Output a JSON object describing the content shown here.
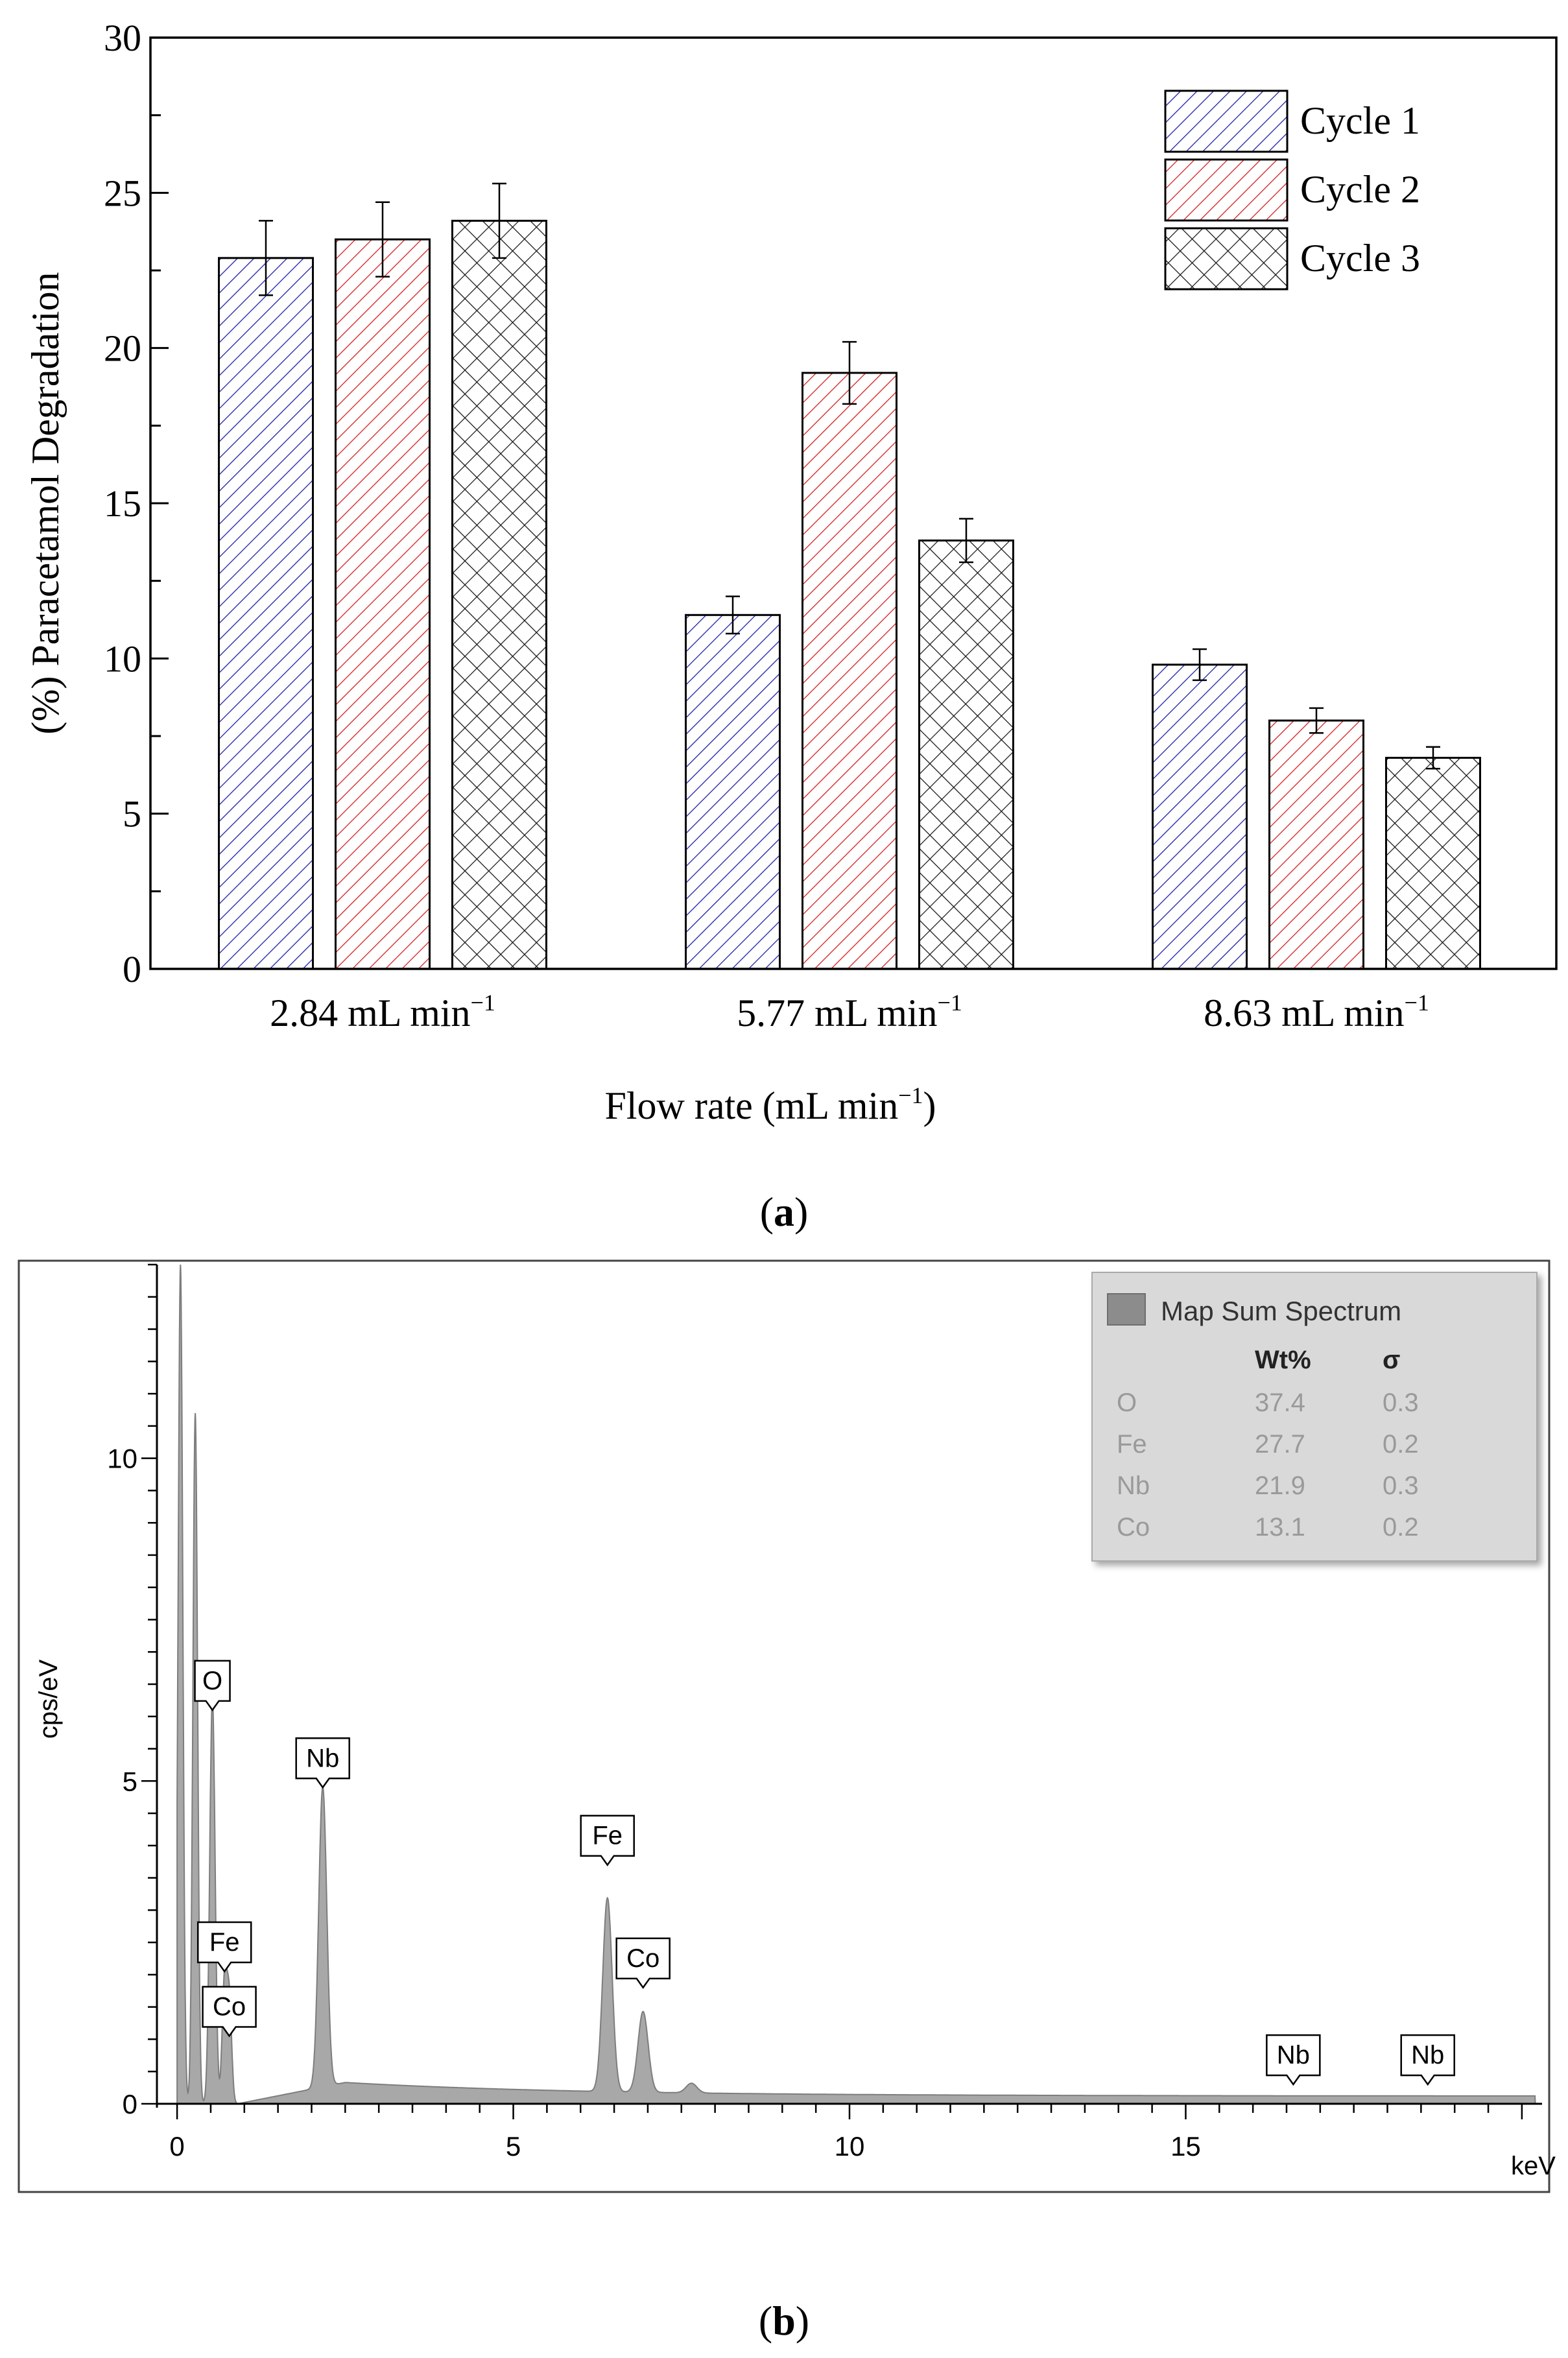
{
  "panels": {
    "a": {
      "caption": "a",
      "chart_data": {
        "type": "bar",
        "title": "",
        "xlabel": "Flow rate (mL min",
        "xlabel_sup": "−1",
        "xlabel_close": ")",
        "ylabel": "(%) Paracetamol Degradation",
        "ylim": [
          0,
          30
        ],
        "yticks": [
          0,
          5,
          10,
          15,
          20,
          25,
          30
        ],
        "categories": [
          {
            "label": "2.84  mL min",
            "sup": "−1"
          },
          {
            "label": "5.77 mL min",
            "sup": "−1"
          },
          {
            "label": "8.63 mL min",
            "sup": "−1"
          }
        ],
        "series": [
          {
            "name": "Cycle 1",
            "values": [
              22.9,
              11.4,
              9.8
            ],
            "errors": [
              1.2,
              0.6,
              0.5
            ],
            "color": "#1f1fa8",
            "pattern": "diagonal"
          },
          {
            "name": "Cycle 2",
            "values": [
              23.5,
              19.2,
              8.0
            ],
            "errors": [
              1.2,
              1.0,
              0.4
            ],
            "color": "#d42020",
            "pattern": "diagonal"
          },
          {
            "name": "Cycle 3",
            "values": [
              24.1,
              13.8,
              6.8
            ],
            "errors": [
              1.2,
              0.7,
              0.35
            ],
            "color": "#111111",
            "pattern": "crosshatch"
          }
        ],
        "legend_position": "top-right"
      }
    },
    "b": {
      "caption": "b",
      "chart_data": {
        "type": "line",
        "title": "",
        "xlabel": "keV",
        "ylabel": "cps/eV",
        "xlim": [
          -0.3,
          20.3
        ],
        "ylim": [
          0,
          13
        ],
        "xticks": [
          0,
          5,
          10,
          15
        ],
        "yticks": [
          0,
          5,
          10
        ],
        "series": [
          {
            "name": "Map Sum Spectrum",
            "color": "#9a9a9a",
            "peaks": [
              {
                "x": 0.05,
                "h": 13.0,
                "w": 0.035
              },
              {
                "x": 0.27,
                "h": 10.7,
                "w": 0.035
              },
              {
                "x": 0.525,
                "h": 6.3,
                "w": 0.04
              },
              {
                "x": 0.705,
                "h": 1.9,
                "w": 0.035
              },
              {
                "x": 0.776,
                "h": 1.6,
                "w": 0.035
              },
              {
                "x": 2.166,
                "h": 4.65,
                "w": 0.06
              },
              {
                "x": 6.4,
                "h": 3.0,
                "w": 0.07
              },
              {
                "x": 6.93,
                "h": 1.25,
                "w": 0.075
              },
              {
                "x": 7.65,
                "h": 0.15,
                "w": 0.08
              }
            ],
            "background": {
              "rise_start": 0.9,
              "peak_x": 2.5,
              "peak_h": 0.33,
              "tail": 0.12
            }
          }
        ],
        "peak_labels": [
          {
            "label": "O",
            "x": 0.525,
            "y": 6.1
          },
          {
            "label": "Nb",
            "x": 2.166,
            "y": 4.9
          },
          {
            "label": "Fe",
            "x": 6.4,
            "y": 3.7
          },
          {
            "label": "Co",
            "x": 6.93,
            "y": 1.8
          },
          {
            "label": "Fe",
            "x": 0.705,
            "y": 2.05
          },
          {
            "label": "Co",
            "x": 0.776,
            "y": 1.05
          },
          {
            "label": "Nb",
            "x": 16.6,
            "y": 0.3
          },
          {
            "label": "Nb",
            "x": 18.6,
            "y": 0.3
          }
        ],
        "legend": {
          "title": "Map Sum Spectrum",
          "swatch_color": "#8c8c8c",
          "headers": [
            "",
            "Wt%",
            "σ"
          ],
          "rows": [
            [
              "O",
              "37.4",
              "0.3"
            ],
            [
              "Fe",
              "27.7",
              "0.2"
            ],
            [
              "Nb",
              "21.9",
              "0.3"
            ],
            [
              "Co",
              "13.1",
              "0.2"
            ]
          ],
          "position": "top-right"
        }
      }
    }
  }
}
